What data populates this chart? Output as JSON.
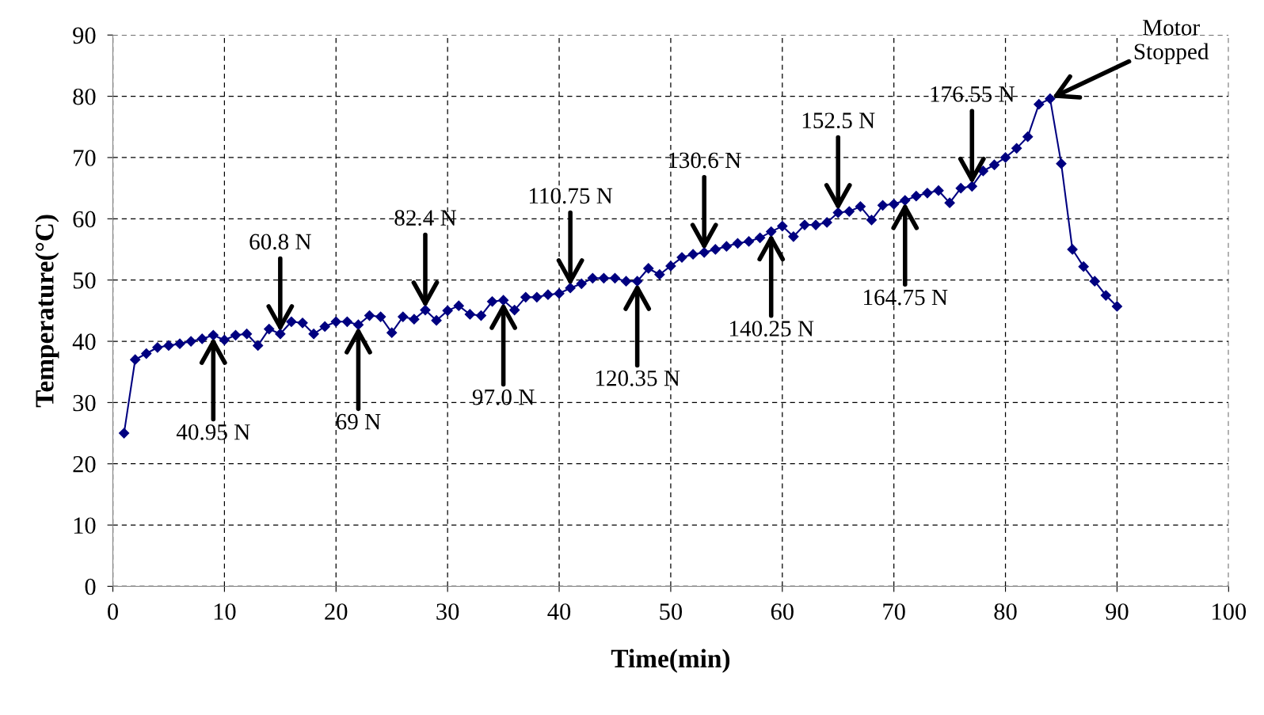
{
  "chart_data": {
    "type": "line",
    "xlabel": "Time(min)",
    "ylabel": "Temperature(°C)",
    "x": [
      1,
      2,
      3,
      4,
      5,
      6,
      7,
      8,
      9,
      10,
      11,
      12,
      13,
      14,
      15,
      16,
      17,
      18,
      19,
      20,
      21,
      22,
      23,
      24,
      25,
      26,
      27,
      28,
      29,
      30,
      31,
      32,
      33,
      34,
      35,
      36,
      37,
      38,
      39,
      40,
      41,
      42,
      43,
      44,
      45,
      46,
      47,
      48,
      49,
      50,
      51,
      52,
      53,
      54,
      55,
      56,
      57,
      58,
      59,
      60,
      61,
      62,
      63,
      64,
      65,
      66,
      67,
      68,
      69,
      70,
      71,
      72,
      73,
      74,
      75,
      76,
      77,
      78,
      79,
      80,
      81,
      82,
      83,
      84,
      85,
      86,
      87,
      88,
      89,
      90
    ],
    "series": [
      {
        "color": "#000080",
        "values": [
          25,
          37,
          38,
          39,
          39.3,
          39.6,
          40,
          40.4,
          41,
          40.2,
          41,
          41.2,
          39.3,
          42,
          41.2,
          43.2,
          43,
          41.2,
          42.4,
          43.2,
          43.2,
          42.7,
          44.2,
          44,
          41.4,
          44,
          43.6,
          45.1,
          43.4,
          45,
          45.8,
          44.4,
          44.2,
          46.5,
          46.7,
          45.1,
          47.2,
          47.2,
          47.6,
          47.8,
          48.7,
          49.4,
          50.3,
          50.3,
          50.3,
          49.8,
          49.8,
          51.9,
          50.9,
          52.3,
          53.7,
          54.2,
          54.5,
          55,
          55.5,
          56,
          56.3,
          56.9,
          57.9,
          58.8,
          57.1,
          59,
          59,
          59.4,
          61,
          61.2,
          62,
          59.8,
          62.2,
          62.4,
          63,
          63.7,
          64.2,
          64.6,
          62.6,
          65,
          65.3,
          67.8,
          68.8,
          70,
          71.5,
          73.4,
          78.7,
          79.6,
          69,
          55,
          52.2,
          49.8,
          47.5,
          45.7
        ]
      }
    ],
    "marker": "diamond",
    "line_style": "solid",
    "grid": true,
    "legend": false,
    "xlim": [
      0,
      100
    ],
    "xticks": [
      0,
      10,
      20,
      30,
      40,
      50,
      60,
      70,
      80,
      90,
      100
    ],
    "ylim": [
      0,
      90
    ],
    "yticks": [
      0,
      10,
      20,
      30,
      40,
      50,
      60,
      70,
      80,
      90
    ],
    "annotations": [
      {
        "text": "40.95 N",
        "x": 9,
        "y": 41
      },
      {
        "text": "60.8 N",
        "x": 15,
        "y": 41.2
      },
      {
        "text": "69 N",
        "x": 22,
        "y": 42.7
      },
      {
        "text": "82.4 N",
        "x": 28,
        "y": 45.1
      },
      {
        "text": "97.0 N",
        "x": 35,
        "y": 46.7
      },
      {
        "text": "110.75 N",
        "x": 41,
        "y": 48.7
      },
      {
        "text": "120.35 N",
        "x": 47,
        "y": 49.8
      },
      {
        "text": "130.6 N",
        "x": 53,
        "y": 54.5
      },
      {
        "text": "140.25 N",
        "x": 59,
        "y": 57.9
      },
      {
        "text": "152.5 N",
        "x": 65,
        "y": 61
      },
      {
        "text": "164.75 N",
        "x": 71,
        "y": 63
      },
      {
        "text": "176.55 N",
        "x": 77,
        "y": 65.3
      },
      {
        "text": "Motor\nStopped",
        "x": 84,
        "y": 79.6
      }
    ]
  }
}
